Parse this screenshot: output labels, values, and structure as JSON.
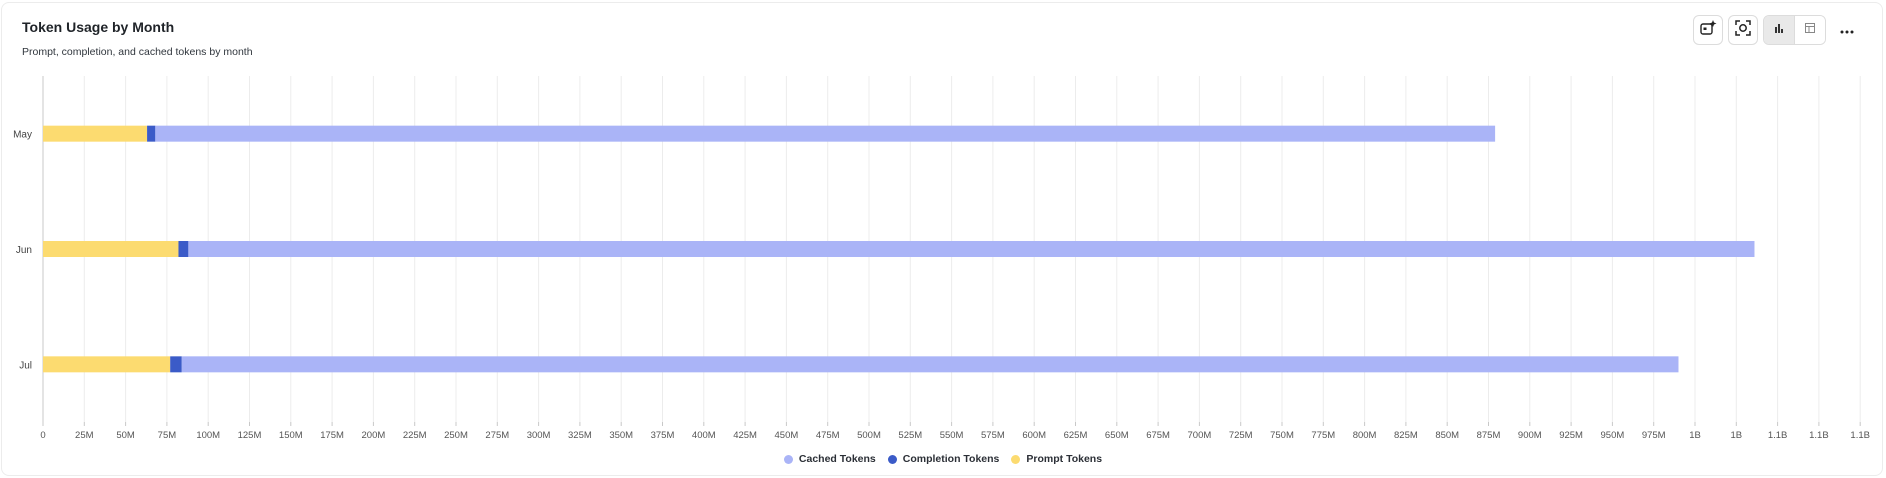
{
  "header": {
    "title": "Token Usage by Month",
    "subtitle": "Prompt, completion, and cached tokens by month"
  },
  "toolbar": {
    "icons": [
      "ai-insights-icon",
      "screenshot-icon",
      "bar-chart-icon",
      "table-icon",
      "more-icon"
    ],
    "active_view": "chart"
  },
  "chart_data": {
    "type": "bar",
    "orientation": "horizontal",
    "stacked": true,
    "title": "Token Usage by Month",
    "subtitle": "Prompt, completion, and cached tokens by month",
    "categories": [
      "May",
      "Jun",
      "Jul"
    ],
    "series": [
      {
        "name": "Prompt Tokens",
        "color": "#fcdb70",
        "values": [
          63000000,
          82000000,
          77000000
        ]
      },
      {
        "name": "Completion Tokens",
        "color": "#3b5bc8",
        "values": [
          5000000,
          6000000,
          7000000
        ]
      },
      {
        "name": "Cached Tokens",
        "color": "#aab4f7",
        "values": [
          811000000,
          948000000,
          906000000
        ]
      }
    ],
    "xlim": [
      0,
      1100000000
    ],
    "x_ticks": [
      "0",
      "25M",
      "50M",
      "75M",
      "100M",
      "125M",
      "150M",
      "175M",
      "200M",
      "225M",
      "250M",
      "275M",
      "300M",
      "325M",
      "350M",
      "375M",
      "400M",
      "425M",
      "450M",
      "475M",
      "500M",
      "525M",
      "550M",
      "575M",
      "600M",
      "625M",
      "650M",
      "675M",
      "700M",
      "725M",
      "750M",
      "775M",
      "800M",
      "825M",
      "850M",
      "875M",
      "900M",
      "925M",
      "950M",
      "975M",
      "1B",
      "1B",
      "1.1B",
      "1.1B",
      "1.1B"
    ],
    "grid": true,
    "legend": {
      "position": "bottom",
      "order": [
        "Cached Tokens",
        "Completion Tokens",
        "Prompt Tokens"
      ]
    }
  }
}
